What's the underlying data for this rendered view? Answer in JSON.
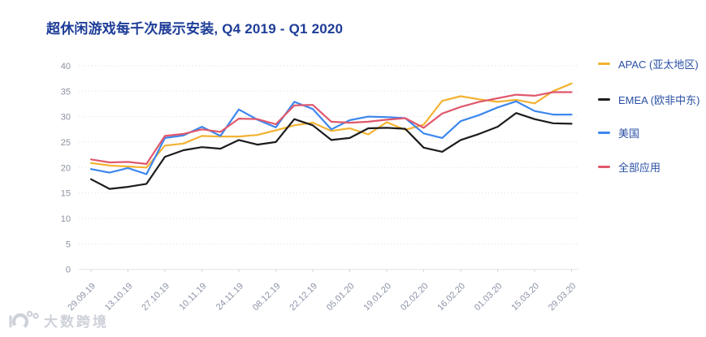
{
  "title": "超休闲游戏每千次展示安装, Q4 2019 - Q1 2020",
  "legend": [
    {
      "label": "APAC (亚太地区)",
      "color": "#F2B231"
    },
    {
      "label": "EMEA (欧非中东)",
      "color": "#1C1C1E"
    },
    {
      "label": "美国",
      "color": "#3D87EE"
    },
    {
      "label": "全部应用",
      "color": "#E0586C"
    }
  ],
  "watermark": {
    "text": "大数跨境"
  },
  "chart_data": {
    "type": "line",
    "title": "超休闲游戏每千次展示安装, Q4 2019 - Q1 2020",
    "x_labels": [
      "29.09.19",
      "13.10.19",
      "27.10.19",
      "10.11.19",
      "24.11.19",
      "08.12.19",
      "22.12.19",
      "05.01.20",
      "19.01.20",
      "02.02.20",
      "16.02.20",
      "01.03.20",
      "15.03.20",
      "29.03.20"
    ],
    "points_per_label_interval": 2,
    "ylim": [
      0,
      40
    ],
    "ytick_step": 5,
    "grid": "horizontal-dotted",
    "legend_position": "right",
    "series": [
      {
        "name": "APAC (亚太地区)",
        "color": "#F2B231",
        "values": [
          20.9,
          20.4,
          20.2,
          20.0,
          24.3,
          24.7,
          26.2,
          26.1,
          26.1,
          26.4,
          27.3,
          28.3,
          28.8,
          27.2,
          27.7,
          26.5,
          28.9,
          27.4,
          28.4,
          33.1,
          34.0,
          33.4,
          32.9,
          33.3,
          32.6,
          35.0,
          36.5
        ]
      },
      {
        "name": "EMEA (欧非中东)",
        "color": "#1C1C1E",
        "values": [
          17.7,
          15.8,
          16.2,
          16.8,
          22.1,
          23.4,
          24.0,
          23.7,
          25.4,
          24.5,
          25.0,
          29.5,
          28.3,
          25.4,
          25.8,
          27.7,
          27.8,
          27.6,
          23.9,
          23.1,
          25.4,
          26.6,
          28.0,
          30.7,
          29.5,
          28.7,
          28.6
        ]
      },
      {
        "name": "美国",
        "color": "#3D87EE",
        "values": [
          19.7,
          19.0,
          19.9,
          18.7,
          25.8,
          26.3,
          28.0,
          26.2,
          31.4,
          29.4,
          27.9,
          32.9,
          31.5,
          27.5,
          29.3,
          30.0,
          29.9,
          29.7,
          26.7,
          25.8,
          29.1,
          30.3,
          31.8,
          33.0,
          31.1,
          30.4,
          30.4
        ]
      },
      {
        "name": "全部应用",
        "color": "#E0586C",
        "values": [
          21.6,
          21.0,
          21.1,
          20.7,
          26.2,
          26.6,
          27.5,
          27.0,
          29.6,
          29.5,
          28.5,
          32.2,
          32.3,
          29.0,
          28.8,
          29.0,
          29.4,
          29.7,
          27.8,
          30.6,
          31.9,
          32.9,
          33.6,
          34.3,
          34.1,
          34.8,
          34.8
        ]
      }
    ]
  }
}
